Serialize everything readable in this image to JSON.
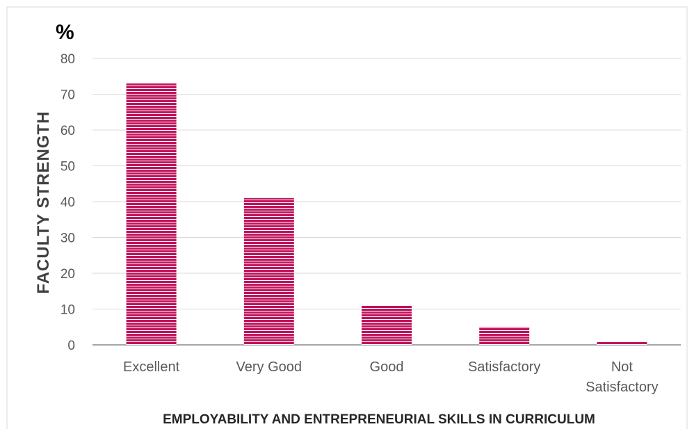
{
  "chart_data": {
    "type": "bar",
    "categories": [
      "Excellent",
      "Very Good",
      "Good",
      "Satisfactory",
      "Not Satisfactory"
    ],
    "category_label_lines": [
      [
        "Excellent"
      ],
      [
        "Very Good"
      ],
      [
        "Good"
      ],
      [
        "Satisfactory"
      ],
      [
        "Not",
        "Satisfactory"
      ]
    ],
    "values": [
      73,
      41,
      11,
      5,
      1
    ],
    "xlabel": "EMPLOYABILITY AND ENTREPRENEURIAL SKILLS IN CURRICULUM",
    "ylabel": "FACULTY STRENGTH",
    "unit": "%",
    "ylim": [
      0,
      80
    ],
    "yticks": [
      "0",
      "10",
      "20",
      "30",
      "40",
      "50",
      "60",
      "70",
      "80"
    ],
    "grid": true,
    "legend": "none",
    "bar_color": "#C0145C",
    "grid_color": "#D9D9D9",
    "frame_color": "#D9D9D9"
  }
}
